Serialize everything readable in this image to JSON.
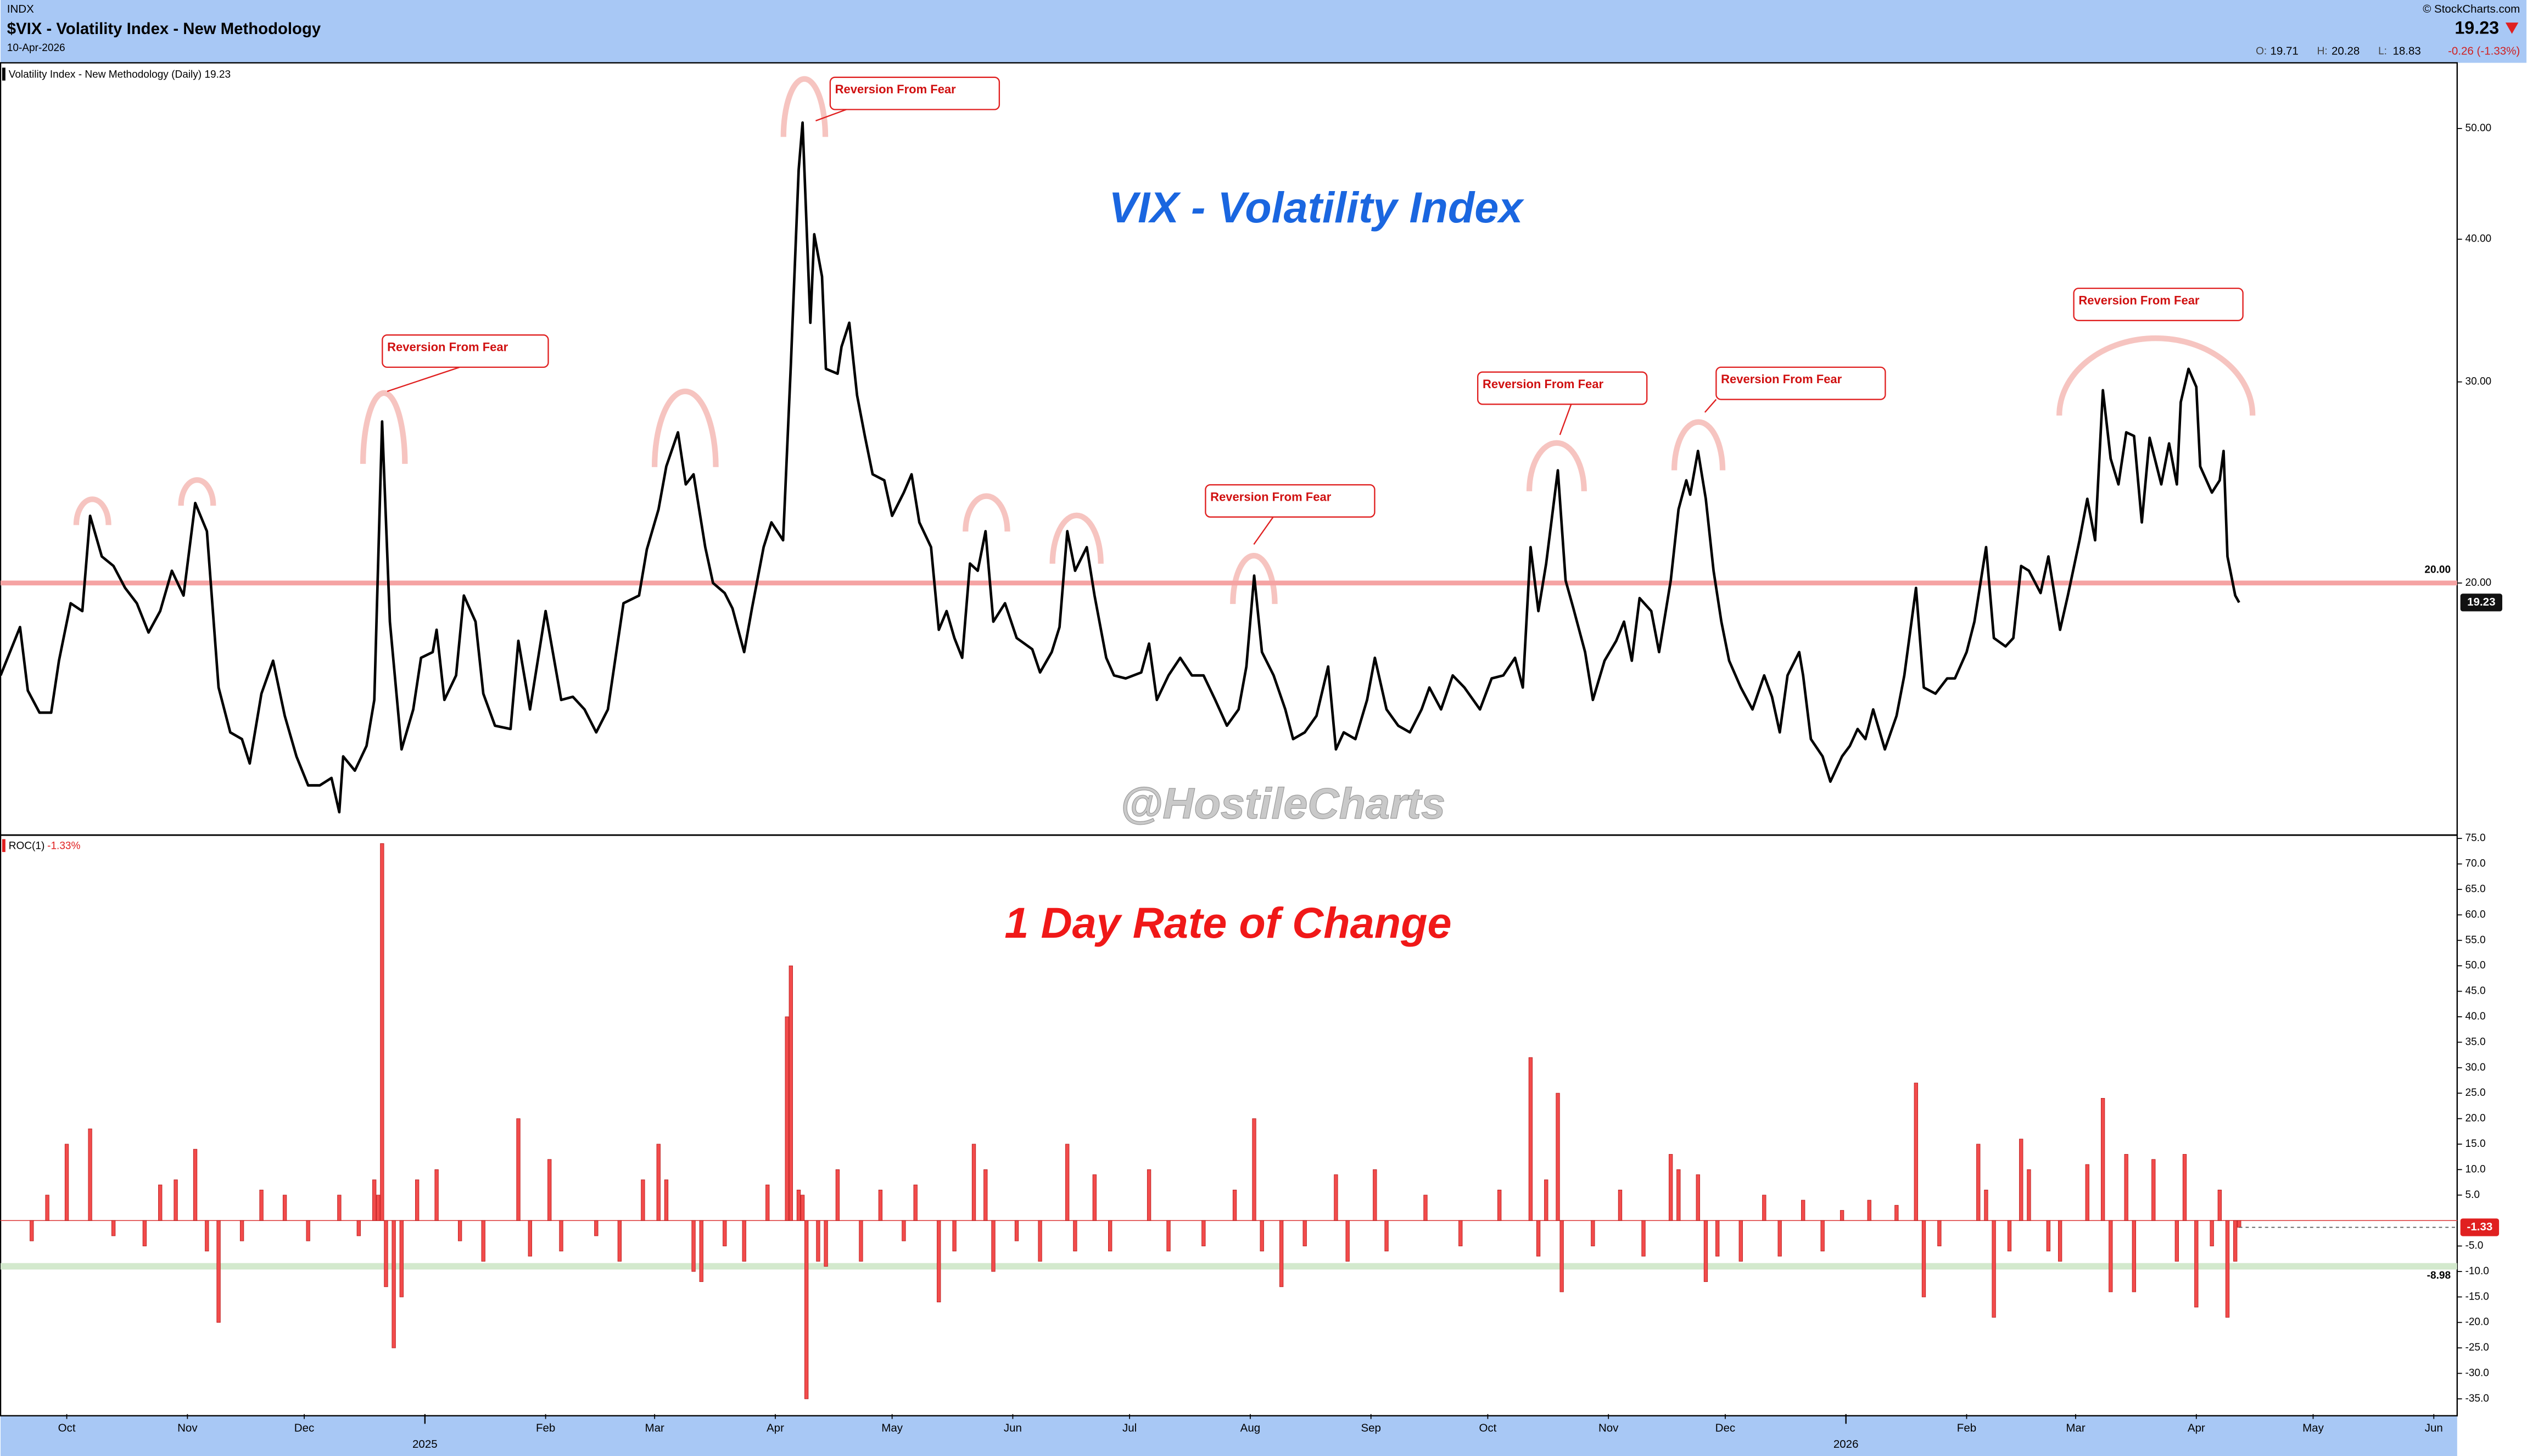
{
  "header": {
    "exchange": "INDX",
    "title": "$VIX - Volatility Index - New Methodology",
    "date": "10-Apr-2026",
    "source": "© StockCharts.com",
    "last": "19.23",
    "ohlc": [
      {
        "label": "O:",
        "value": "19.71"
      },
      {
        "label": "H:",
        "value": "20.28"
      },
      {
        "label": "L:",
        "value": "18.83"
      }
    ],
    "change": "-0.26 (-1.33%)"
  },
  "chart_data": [
    {
      "type": "line",
      "title": "VIX - Volatility Index",
      "watermark": "@HostileCharts",
      "log_y": true,
      "annotations": [
        "Reversion From Fear",
        "Reversion From Fear",
        "Reversion From Fear",
        "Reversion From Fear",
        "Reversion From Fear",
        "Reversion From Fear"
      ],
      "xlim": [
        -17,
        614
      ],
      "x": [
        -17,
        -12,
        -10,
        -7,
        -4,
        -2,
        1,
        4,
        6,
        9,
        12,
        15,
        18,
        21,
        24,
        27,
        30,
        33,
        36,
        39,
        42,
        45,
        47,
        50,
        53,
        56,
        59,
        62,
        65,
        68,
        70,
        71,
        74,
        77,
        79,
        81,
        83,
        86,
        89,
        91,
        94,
        95,
        97,
        100,
        102,
        105,
        107,
        110,
        114,
        116,
        119,
        123,
        127,
        130,
        133,
        136,
        139,
        143,
        147,
        149,
        152,
        154,
        157,
        159,
        161,
        164,
        166,
        169,
        171,
        174,
        176,
        179,
        181,
        184,
        186,
        188,
        189,
        191,
        192,
        194,
        195,
        198,
        199,
        201,
        203,
        205,
        207,
        210,
        212,
        215,
        217,
        219,
        222,
        224,
        226,
        228,
        230,
        232,
        234,
        236,
        238,
        241,
        244,
        248,
        250,
        253,
        255,
        257,
        259,
        262,
        264,
        267,
        269,
        272,
        276,
        278,
        280,
        283,
        286,
        289,
        292,
        295,
        298,
        301,
        303,
        305,
        307,
        310,
        313,
        315,
        318,
        321,
        324,
        326,
        328,
        331,
        334,
        336,
        339,
        342,
        345,
        348,
        350,
        353,
        356,
        359,
        363,
        366,
        369,
        372,
        374,
        376,
        378,
        380,
        383,
        385,
        387,
        390,
        392,
        395,
        398,
        400,
        402,
        404,
        407,
        409,
        412,
        414,
        416,
        417,
        419,
        421,
        423,
        425,
        427,
        430,
        433,
        436,
        438,
        440,
        442,
        445,
        446,
        448,
        451,
        453,
        456,
        458,
        460,
        462,
        464,
        467,
        470,
        472,
        475,
        477,
        480,
        483,
        485,
        488,
        490,
        493,
        495,
        498,
        500,
        502,
        504,
        507,
        509,
        512,
        514,
        517,
        519,
        521,
        523,
        525,
        527,
        529,
        531,
        533,
        535,
        538,
        540,
        542,
        543,
        545,
        547,
        548,
        551,
        553,
        554,
        555,
        557,
        558
      ],
      "series": [
        {
          "name": "Volatility Index - New Methodology (Daily) 19.23",
          "color": "#000000",
          "last_label": "19.23",
          "values": [
            16.6,
            18.3,
            16.1,
            15.4,
            15.4,
            17.1,
            19.2,
            18.9,
            22.9,
            21.1,
            20.7,
            19.8,
            19.2,
            18.1,
            18.9,
            20.5,
            19.5,
            23.5,
            22.2,
            16.2,
            14.8,
            14.6,
            13.9,
            16.0,
            17.1,
            15.3,
            14.1,
            13.3,
            13.3,
            13.5,
            12.6,
            14.1,
            13.7,
            14.4,
            15.8,
            27.7,
            18.5,
            14.3,
            15.5,
            17.2,
            17.4,
            18.2,
            15.8,
            16.6,
            19.5,
            18.5,
            16.0,
            15.0,
            14.9,
            17.8,
            15.5,
            18.9,
            15.8,
            15.9,
            15.5,
            14.8,
            15.5,
            19.2,
            19.5,
            21.4,
            23.2,
            25.3,
            27.1,
            24.4,
            24.9,
            21.5,
            20.0,
            19.6,
            19.0,
            17.4,
            19.0,
            21.5,
            22.6,
            21.8,
            31.1,
            46.0,
            50.6,
            33.8,
            40.4,
            37.1,
            30.8,
            30.5,
            32.2,
            33.8,
            29.2,
            26.9,
            24.9,
            24.6,
            22.9,
            24.0,
            24.9,
            22.6,
            21.5,
            18.2,
            18.9,
            17.9,
            17.2,
            20.8,
            20.5,
            22.2,
            18.5,
            19.2,
            17.9,
            17.5,
            16.7,
            17.4,
            18.3,
            22.2,
            20.5,
            21.5,
            19.5,
            17.2,
            16.6,
            16.5,
            16.7,
            17.7,
            15.8,
            16.6,
            17.2,
            16.6,
            16.6,
            15.8,
            15.0,
            15.5,
            16.9,
            20.3,
            17.4,
            16.6,
            15.5,
            14.6,
            14.8,
            15.3,
            16.9,
            14.3,
            14.8,
            14.6,
            15.8,
            17.2,
            15.5,
            15.0,
            14.8,
            15.5,
            16.2,
            15.5,
            16.6,
            16.2,
            15.5,
            16.5,
            16.6,
            17.2,
            16.2,
            21.5,
            18.9,
            20.8,
            25.1,
            20.1,
            19.0,
            17.4,
            15.8,
            17.1,
            17.8,
            18.5,
            17.1,
            19.4,
            18.9,
            17.4,
            20.1,
            23.2,
            24.6,
            23.9,
            26.1,
            23.7,
            20.5,
            18.5,
            17.1,
            16.2,
            15.5,
            16.6,
            15.9,
            14.8,
            16.6,
            17.4,
            16.6,
            14.6,
            14.1,
            13.4,
            14.1,
            14.4,
            14.9,
            14.6,
            15.5,
            14.3,
            15.3,
            16.6,
            19.8,
            16.2,
            16.0,
            16.5,
            16.5,
            17.4,
            18.5,
            21.5,
            17.9,
            17.6,
            17.9,
            20.7,
            20.5,
            19.6,
            21.1,
            18.2,
            19.5,
            21.8,
            23.7,
            21.8,
            29.5,
            25.7,
            24.4,
            27.1,
            26.9,
            22.6,
            26.8,
            24.4,
            26.5,
            24.4,
            28.8,
            30.8,
            29.7,
            25.3,
            24.0,
            24.6,
            26.1,
            21.1,
            19.5,
            19.23
          ]
        }
      ],
      "ylim": [
        12.05,
        56.9
      ],
      "yticks": [
        {
          "value": 20,
          "label": "20.00"
        },
        {
          "value": 30,
          "label": "30.00"
        },
        {
          "value": 40,
          "label": "40.00"
        },
        {
          "value": 50,
          "label": "50.00"
        }
      ],
      "hlines": [
        {
          "value": 20,
          "label": "20.00",
          "color": "#f5a3a3"
        }
      ]
    },
    {
      "type": "bar",
      "title": "1 Day Rate of Change",
      "name": "ROC(1)",
      "name_value": "-1.33%",
      "color": "#f24b4b",
      "last_label": "-1.33",
      "xlim": [
        -17,
        614
      ],
      "x": [
        -9,
        -5,
        0,
        6,
        12,
        20,
        24,
        28,
        33,
        36,
        39,
        45,
        50,
        56,
        62,
        70,
        75,
        79,
        80,
        81,
        82,
        84,
        86,
        90,
        95,
        101,
        107,
        116,
        119,
        124,
        127,
        136,
        142,
        148,
        152,
        154,
        161,
        163,
        169,
        174,
        180,
        185,
        186,
        188,
        189,
        190,
        193,
        195,
        198,
        204,
        209,
        215,
        218,
        224,
        228,
        233,
        236,
        238,
        244,
        250,
        257,
        259,
        264,
        268,
        278,
        283,
        292,
        300,
        305,
        307,
        312,
        318,
        326,
        329,
        336,
        339,
        349,
        358,
        368,
        376,
        378,
        380,
        383,
        384,
        392,
        399,
        405,
        412,
        414,
        419,
        421,
        424,
        430,
        436,
        440,
        446,
        451,
        456,
        463,
        470,
        475,
        477,
        481,
        491,
        493,
        495,
        499,
        502,
        504,
        509,
        512,
        519,
        523,
        525,
        529,
        531,
        536,
        542,
        544,
        547,
        551,
        553,
        555,
        557,
        558
      ],
      "values": [
        -4,
        5,
        15,
        18,
        -3,
        -5,
        7,
        8,
        14,
        -6,
        -20,
        -4,
        6,
        5,
        -4,
        5,
        -3,
        8,
        5,
        74,
        -13,
        -25,
        -15,
        8,
        10,
        -4,
        -8,
        20,
        -7,
        12,
        -6,
        -3,
        -8,
        8,
        15,
        8,
        -10,
        -12,
        -5,
        -8,
        7,
        40,
        50,
        6,
        5,
        -35,
        -8,
        -9,
        10,
        -8,
        6,
        -4,
        7,
        -16,
        -6,
        15,
        10,
        -10,
        -4,
        -8,
        15,
        -6,
        9,
        -6,
        10,
        -6,
        -5,
        6,
        20,
        -6,
        -13,
        -5,
        9,
        -8,
        10,
        -6,
        5,
        -5,
        6,
        32,
        -7,
        8,
        25,
        -14,
        -5,
        6,
        -7,
        13,
        10,
        9,
        -12,
        -7,
        -8,
        5,
        -7,
        4,
        -6,
        2,
        4,
        3,
        27,
        -15,
        -5,
        15,
        6,
        -19,
        -6,
        16,
        10,
        -6,
        -8,
        11,
        24,
        -14,
        13,
        -14,
        12,
        -8,
        13,
        -17,
        -5,
        6,
        -19,
        -8,
        -1.33
      ],
      "ylim": [
        -38,
        75.5
      ],
      "yticks": [
        {
          "value": 75,
          "label": "75.0"
        },
        {
          "value": 70,
          "label": "70.0"
        },
        {
          "value": 65,
          "label": "65.0"
        },
        {
          "value": 60,
          "label": "60.0"
        },
        {
          "value": 55,
          "label": "55.0"
        },
        {
          "value": 50,
          "label": "50.0"
        },
        {
          "value": 45,
          "label": "45.0"
        },
        {
          "value": 40,
          "label": "40.0"
        },
        {
          "value": 35,
          "label": "35.0"
        },
        {
          "value": 30,
          "label": "30.0"
        },
        {
          "value": 25,
          "label": "25.0"
        },
        {
          "value": 20,
          "label": "20.0"
        },
        {
          "value": 15,
          "label": "15.0"
        },
        {
          "value": 10,
          "label": "10.0"
        },
        {
          "value": 5,
          "label": "5.0"
        },
        {
          "value": -5,
          "label": "-5.0"
        },
        {
          "value": -10,
          "label": "-10.0"
        },
        {
          "value": -15,
          "label": "-15.0"
        },
        {
          "value": -20,
          "label": "-20.0"
        },
        {
          "value": -25,
          "label": "-25.0"
        },
        {
          "value": -30,
          "label": "-30.0"
        },
        {
          "value": -35,
          "label": "-35.0"
        }
      ],
      "hlines": [
        {
          "value": -8.98,
          "label": "-8.98",
          "color": "#d3e9cd"
        }
      ],
      "xticks": [
        {
          "value": 0,
          "label": "Oct"
        },
        {
          "value": 31,
          "label": "Nov"
        },
        {
          "value": 61,
          "label": "Dec"
        },
        {
          "value": 123,
          "label": "Feb"
        },
        {
          "value": 151,
          "label": "Mar"
        },
        {
          "value": 182,
          "label": "Apr"
        },
        {
          "value": 212,
          "label": "May"
        },
        {
          "value": 243,
          "label": "Jun"
        },
        {
          "value": 273,
          "label": "Jul"
        },
        {
          "value": 304,
          "label": "Aug"
        },
        {
          "value": 335,
          "label": "Sep"
        },
        {
          "value": 365,
          "label": "Oct"
        },
        {
          "value": 396,
          "label": "Nov"
        },
        {
          "value": 426,
          "label": "Dec"
        },
        {
          "value": 488,
          "label": "Feb"
        },
        {
          "value": 516,
          "label": "Mar"
        },
        {
          "value": 547,
          "label": "Apr"
        },
        {
          "value": 577,
          "label": "May"
        },
        {
          "value": 608,
          "label": "Jun"
        }
      ],
      "xticks_years": [
        {
          "value": 92,
          "label": "2025"
        },
        {
          "value": 457,
          "label": "2026"
        }
      ]
    }
  ]
}
